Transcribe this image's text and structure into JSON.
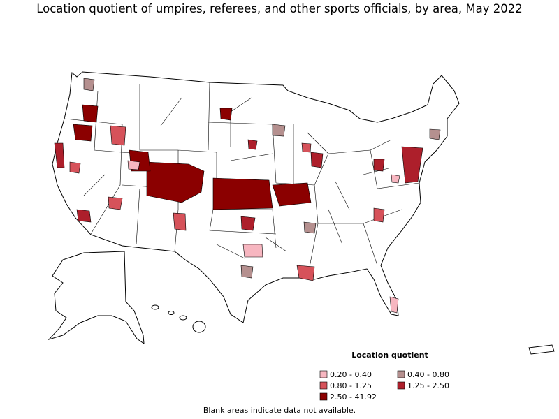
{
  "title": "Location quotient of umpires, referees, and other sports officials, by area, May 2022",
  "legend": {
    "title": "Location quotient",
    "items": [
      {
        "label": "0.20 - 0.40",
        "color": "#f7b6c0"
      },
      {
        "label": "0.40 - 0.80",
        "color": "#b5908f"
      },
      {
        "label": "0.80 - 1.25",
        "color": "#d6525a"
      },
      {
        "label": "1.25 - 2.50",
        "color": "#ad1f2b"
      },
      {
        "label": "2.50 - 41.92",
        "color": "#8b0000"
      }
    ]
  },
  "footnote": "Blank areas indicate data not available."
}
